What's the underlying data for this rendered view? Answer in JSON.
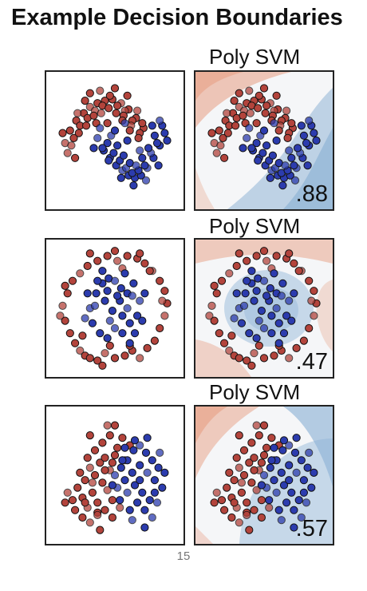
{
  "title": "Example Decision Boundaries",
  "page_number": "15",
  "colors": {
    "class_red": "#b3443c",
    "class_blue": "#2c3cae",
    "boundary_red": "#e8a58c",
    "boundary_blue": "#8fb4d6",
    "border": "#222222"
  },
  "rows": [
    {
      "subtitle": "Poly SVM",
      "score": ".88"
    },
    {
      "subtitle": "Poly SVM",
      "score": ".47"
    },
    {
      "subtitle": "Poly SVM",
      "score": ".57"
    }
  ],
  "chart_data": [
    {
      "type": "scatter",
      "title": "",
      "xlabel": "",
      "ylabel": "",
      "xlim": [
        0,
        1
      ],
      "ylim": [
        0,
        1
      ],
      "grid": false,
      "description_series": "moons",
      "series": [
        {
          "name": "",
          "color": "#b3443c",
          "x": [
            0.1,
            0.14,
            0.19,
            0.25,
            0.3,
            0.36,
            0.42,
            0.48,
            0.55,
            0.61,
            0.67,
            0.73,
            0.12,
            0.17,
            0.22,
            0.28,
            0.34,
            0.4,
            0.46,
            0.52,
            0.58,
            0.64,
            0.7,
            0.08,
            0.15,
            0.21,
            0.27,
            0.33,
            0.39,
            0.45,
            0.51,
            0.57,
            0.63,
            0.69,
            0.18,
            0.26,
            0.38,
            0.5,
            0.6,
            0.72,
            0.2,
            0.3,
            0.44,
            0.56,
            0.68,
            0.35,
            0.62
          ],
          "y": [
            0.48,
            0.58,
            0.66,
            0.72,
            0.77,
            0.8,
            0.82,
            0.83,
            0.8,
            0.75,
            0.68,
            0.6,
            0.4,
            0.52,
            0.62,
            0.68,
            0.74,
            0.78,
            0.86,
            0.78,
            0.74,
            0.66,
            0.56,
            0.56,
            0.46,
            0.56,
            0.62,
            0.7,
            0.72,
            0.76,
            0.72,
            0.7,
            0.62,
            0.52,
            0.36,
            0.82,
            0.9,
            0.92,
            0.86,
            0.64,
            0.72,
            0.88,
            0.64,
            0.66,
            0.74,
            0.64,
            0.58
          ]
        },
        {
          "name": "",
          "color": "#2c3cae",
          "x": [
            0.36,
            0.41,
            0.46,
            0.51,
            0.56,
            0.61,
            0.66,
            0.71,
            0.76,
            0.81,
            0.86,
            0.9,
            0.38,
            0.44,
            0.49,
            0.54,
            0.59,
            0.64,
            0.69,
            0.74,
            0.79,
            0.84,
            0.88,
            0.4,
            0.47,
            0.52,
            0.57,
            0.62,
            0.67,
            0.72,
            0.77,
            0.82,
            0.86,
            0.45,
            0.55,
            0.65,
            0.75,
            0.85,
            0.5,
            0.6,
            0.7,
            0.8,
            0.92,
            0.33,
            0.58
          ],
          "y": [
            0.52,
            0.42,
            0.36,
            0.3,
            0.26,
            0.22,
            0.2,
            0.22,
            0.28,
            0.36,
            0.46,
            0.56,
            0.6,
            0.48,
            0.4,
            0.34,
            0.28,
            0.24,
            0.26,
            0.3,
            0.4,
            0.48,
            0.62,
            0.44,
            0.54,
            0.46,
            0.38,
            0.32,
            0.3,
            0.36,
            0.44,
            0.54,
            0.66,
            0.34,
            0.2,
            0.14,
            0.18,
            0.3,
            0.58,
            0.5,
            0.42,
            0.62,
            0.5,
            0.44,
            0.64
          ]
        }
      ]
    },
    {
      "type": "scatter",
      "title": "",
      "xlabel": "",
      "ylabel": "",
      "xlim": [
        0,
        1
      ],
      "ylim": [
        0,
        1
      ],
      "grid": false,
      "description_series": "circles",
      "series": [
        {
          "name": "",
          "color": "#b3443c",
          "x": [
            0.08,
            0.1,
            0.14,
            0.18,
            0.22,
            0.26,
            0.3,
            0.36,
            0.42,
            0.5,
            0.58,
            0.64,
            0.7,
            0.76,
            0.82,
            0.86,
            0.9,
            0.92,
            0.9,
            0.86,
            0.8,
            0.74,
            0.68,
            0.6,
            0.52,
            0.44,
            0.36,
            0.28,
            0.22,
            0.16,
            0.12,
            0.1,
            0.06,
            0.3,
            0.5,
            0.7,
            0.88,
            0.62,
            0.4,
            0.46,
            0.56,
            0.24,
            0.78
          ],
          "y": [
            0.52,
            0.4,
            0.3,
            0.22,
            0.16,
            0.12,
            0.1,
            0.08,
            0.14,
            0.1,
            0.12,
            0.16,
            0.1,
            0.18,
            0.24,
            0.34,
            0.44,
            0.54,
            0.64,
            0.72,
            0.8,
            0.86,
            0.9,
            0.92,
            0.88,
            0.92,
            0.88,
            0.84,
            0.78,
            0.72,
            0.62,
            0.68,
            0.44,
            0.94,
            0.96,
            0.94,
            0.56,
            0.2,
            0.04,
            0.2,
            0.82,
            0.28,
            0.8
          ]
        },
        {
          "name": "",
          "color": "#2c3cae",
          "x": [
            0.3,
            0.35,
            0.4,
            0.45,
            0.5,
            0.55,
            0.6,
            0.65,
            0.7,
            0.32,
            0.38,
            0.44,
            0.5,
            0.56,
            0.62,
            0.68,
            0.34,
            0.42,
            0.48,
            0.54,
            0.6,
            0.66,
            0.72,
            0.28,
            0.46,
            0.58,
            0.4,
            0.52,
            0.64,
            0.36,
            0.62,
            0.74,
            0.26,
            0.56,
            0.44
          ],
          "y": [
            0.5,
            0.62,
            0.7,
            0.74,
            0.72,
            0.66,
            0.62,
            0.7,
            0.56,
            0.38,
            0.3,
            0.26,
            0.34,
            0.3,
            0.38,
            0.44,
            0.52,
            0.56,
            0.48,
            0.56,
            0.5,
            0.3,
            0.4,
            0.62,
            0.4,
            0.78,
            0.8,
            0.6,
            0.6,
            0.72,
            0.22,
            0.62,
            0.42,
            0.44,
            0.64
          ]
        }
      ]
    },
    {
      "type": "scatter",
      "title": "",
      "xlabel": "",
      "ylabel": "",
      "xlim": [
        0,
        1
      ],
      "ylim": [
        0,
        1
      ],
      "grid": false,
      "description_series": "blobs",
      "series": [
        {
          "name": "",
          "color": "#b3443c",
          "x": [
            0.12,
            0.16,
            0.2,
            0.24,
            0.28,
            0.32,
            0.36,
            0.4,
            0.44,
            0.48,
            0.22,
            0.26,
            0.3,
            0.34,
            0.38,
            0.42,
            0.46,
            0.5,
            0.18,
            0.24,
            0.3,
            0.36,
            0.42,
            0.48,
            0.54,
            0.4,
            0.46,
            0.52,
            0.58,
            0.1,
            0.28,
            0.34,
            0.44,
            0.5,
            0.56,
            0.38,
            0.32,
            0.26,
            0.48,
            0.62,
            0.36,
            0.42,
            0.3
          ],
          "y": [
            0.36,
            0.3,
            0.4,
            0.32,
            0.24,
            0.36,
            0.28,
            0.44,
            0.38,
            0.3,
            0.52,
            0.46,
            0.56,
            0.5,
            0.6,
            0.64,
            0.54,
            0.66,
            0.22,
            0.16,
            0.12,
            0.2,
            0.22,
            0.16,
            0.24,
            0.76,
            0.82,
            0.72,
            0.62,
            0.28,
            0.64,
            0.7,
            0.9,
            0.9,
            0.8,
            0.06,
            0.44,
            0.28,
            0.6,
            0.74,
            0.18,
            0.54,
            0.82
          ]
        },
        {
          "name": "",
          "color": "#2c3cae",
          "x": [
            0.5,
            0.55,
            0.6,
            0.65,
            0.7,
            0.75,
            0.8,
            0.85,
            0.52,
            0.58,
            0.64,
            0.7,
            0.76,
            0.82,
            0.88,
            0.54,
            0.6,
            0.66,
            0.72,
            0.78,
            0.84,
            0.62,
            0.68,
            0.74,
            0.8,
            0.56,
            0.66,
            0.76,
            0.86,
            0.58,
            0.7,
            0.82,
            0.64,
            0.74,
            0.9,
            0.48
          ],
          "y": [
            0.5,
            0.56,
            0.62,
            0.7,
            0.74,
            0.68,
            0.62,
            0.56,
            0.4,
            0.46,
            0.52,
            0.58,
            0.52,
            0.46,
            0.4,
            0.3,
            0.36,
            0.42,
            0.36,
            0.3,
            0.28,
            0.22,
            0.28,
            0.22,
            0.16,
            0.62,
            0.78,
            0.8,
            0.68,
            0.72,
            0.46,
            0.36,
            0.14,
            0.08,
            0.52,
            0.42
          ]
        }
      ]
    }
  ]
}
